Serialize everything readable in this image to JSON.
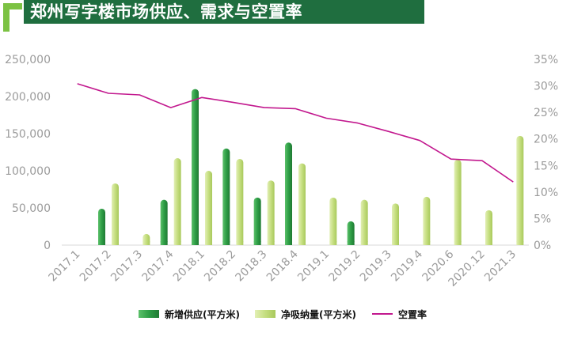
{
  "header": {
    "title": "郑州写字楼市场供应、需求与空置率"
  },
  "colors": {
    "banner": "#1f6e3f",
    "supply": "#2e9e46",
    "absorption": "#c5de80",
    "vacancy": "#c2188e"
  },
  "chart_data": {
    "type": "bar",
    "title": "郑州写字楼市场供应、需求与空置率",
    "categories": [
      "2017.1",
      "2017.2",
      "2017.3",
      "2017.4",
      "2018.1",
      "2018.2",
      "2018.3",
      "2018.4",
      "2019.1",
      "2019.2",
      "2019.3",
      "2019.4",
      "2020.6",
      "2020.12",
      "2021.3"
    ],
    "series": [
      {
        "name": "新增供应(平方米)",
        "kind": "bar",
        "axis": "left",
        "values": [
          null,
          49000,
          null,
          61000,
          210000,
          130000,
          64000,
          138000,
          null,
          32000,
          null,
          null,
          null,
          null,
          null
        ]
      },
      {
        "name": "净吸纳量(平方米)",
        "kind": "bar",
        "axis": "left",
        "values": [
          null,
          83000,
          15000,
          117000,
          100000,
          116000,
          87000,
          110000,
          64000,
          61000,
          56000,
          65000,
          115000,
          47000,
          147000
        ]
      },
      {
        "name": "空置率",
        "kind": "line",
        "axis": "right",
        "values": [
          30.4,
          28.6,
          28.3,
          25.9,
          27.8,
          26.9,
          25.9,
          25.7,
          23.9,
          23.0,
          21.4,
          19.7,
          16.2,
          15.9,
          11.9
        ]
      }
    ],
    "left_axis": {
      "min": 0,
      "max": 250000,
      "ticks": [
        "0",
        "50,000",
        "100,000",
        "150,000",
        "200,000",
        "250,000"
      ]
    },
    "right_axis": {
      "min": 0,
      "max": 35,
      "ticks": [
        "0%",
        "5%",
        "10%",
        "15%",
        "20%",
        "25%",
        "30%",
        "35%"
      ]
    },
    "legend": {
      "position": "bottom",
      "labels": [
        "新增供应(平方米)",
        "净吸纳量(平方米)",
        "空置率"
      ]
    },
    "grid": false
  }
}
